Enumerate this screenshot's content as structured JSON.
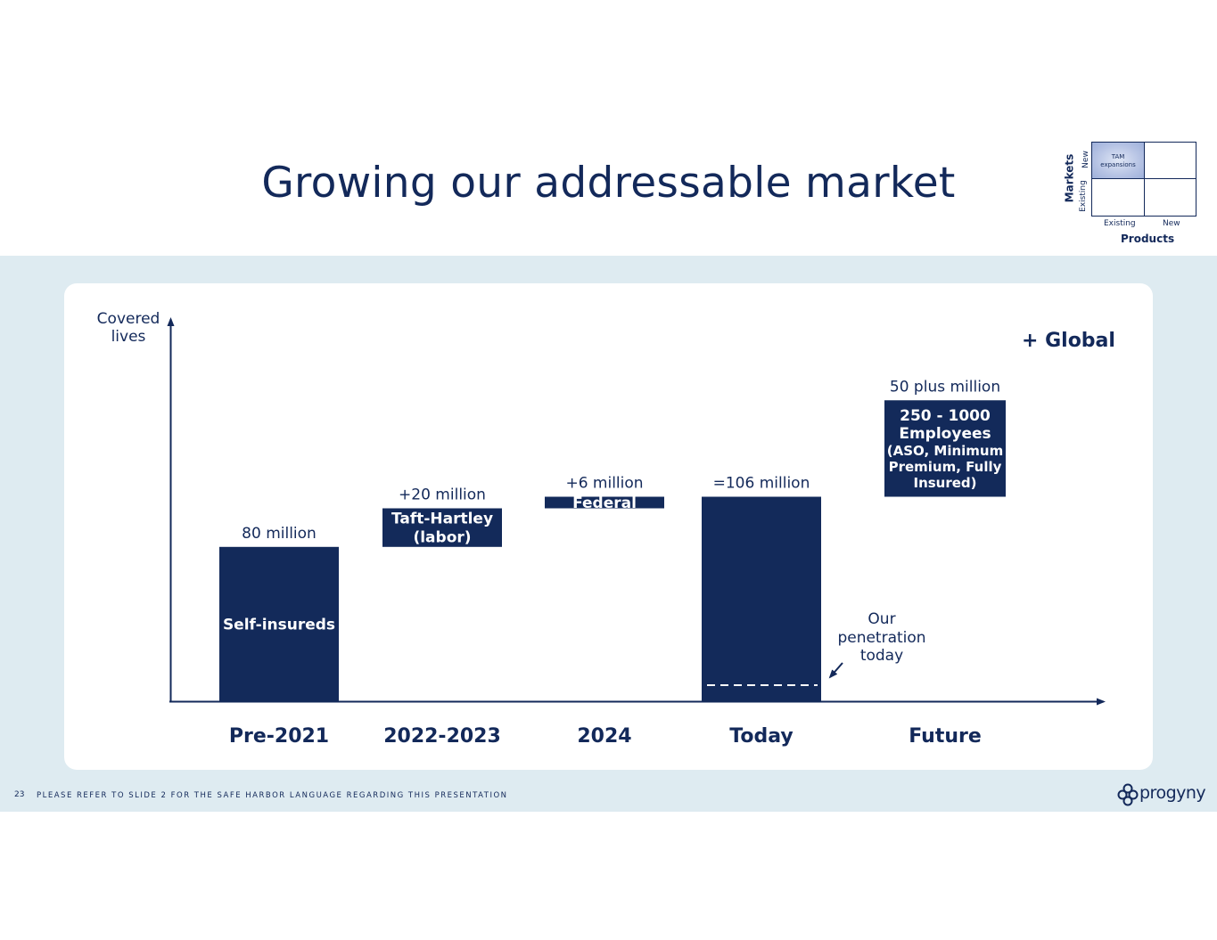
{
  "slide": {
    "title": "Growing our addressable market",
    "page_number": "23",
    "footer": "PLEASE REFER TO SLIDE 2 FOR THE SAFE HARBOR LANGUAGE REGARDING THIS PRESENTATION",
    "logo_text": "progyny"
  },
  "matrix": {
    "y_title": "Markets",
    "x_title": "Products",
    "y_new": "New",
    "y_existing": "Existing",
    "x_existing": "Existing",
    "x_new": "New",
    "highlight_line1": "TAM",
    "highlight_line2": "expansions"
  },
  "chart_data": {
    "type": "bar",
    "ylabel_line1": "Covered",
    "ylabel_line2": "lives",
    "categories": [
      "Pre-2021",
      "2022-2023",
      "2024",
      "Today",
      "Future"
    ],
    "bars": [
      {
        "category": "Pre-2021",
        "value_label": "80 million",
        "start": 0,
        "end": 80,
        "box_lines": [
          "Self-insureds"
        ]
      },
      {
        "category": "2022-2023",
        "value_label": "+20 million",
        "start": 80,
        "end": 100,
        "box_lines": [
          "Taft-Hartley",
          "(labor)"
        ]
      },
      {
        "category": "2024",
        "value_label": "+6 million",
        "start": 100,
        "end": 106,
        "box_lines": [
          "Federal"
        ]
      },
      {
        "category": "Today",
        "value_label": "=106 million",
        "start": 0,
        "end": 106,
        "box_lines": []
      },
      {
        "category": "Future",
        "value_label": "50 plus million",
        "start": 106,
        "end": 156,
        "box_lines": [
          "250 - 1000",
          "Employees",
          "(ASO, Minimum",
          "Premium, Fully",
          "Insured)"
        ]
      }
    ],
    "annotations": {
      "global": "+ Global",
      "penetration_line1": "Our",
      "penetration_line2": "penetration",
      "penetration_line3": "today"
    },
    "colors": {
      "bar": "#132a5a",
      "background": "#deebf1",
      "text": "#13295a"
    }
  }
}
